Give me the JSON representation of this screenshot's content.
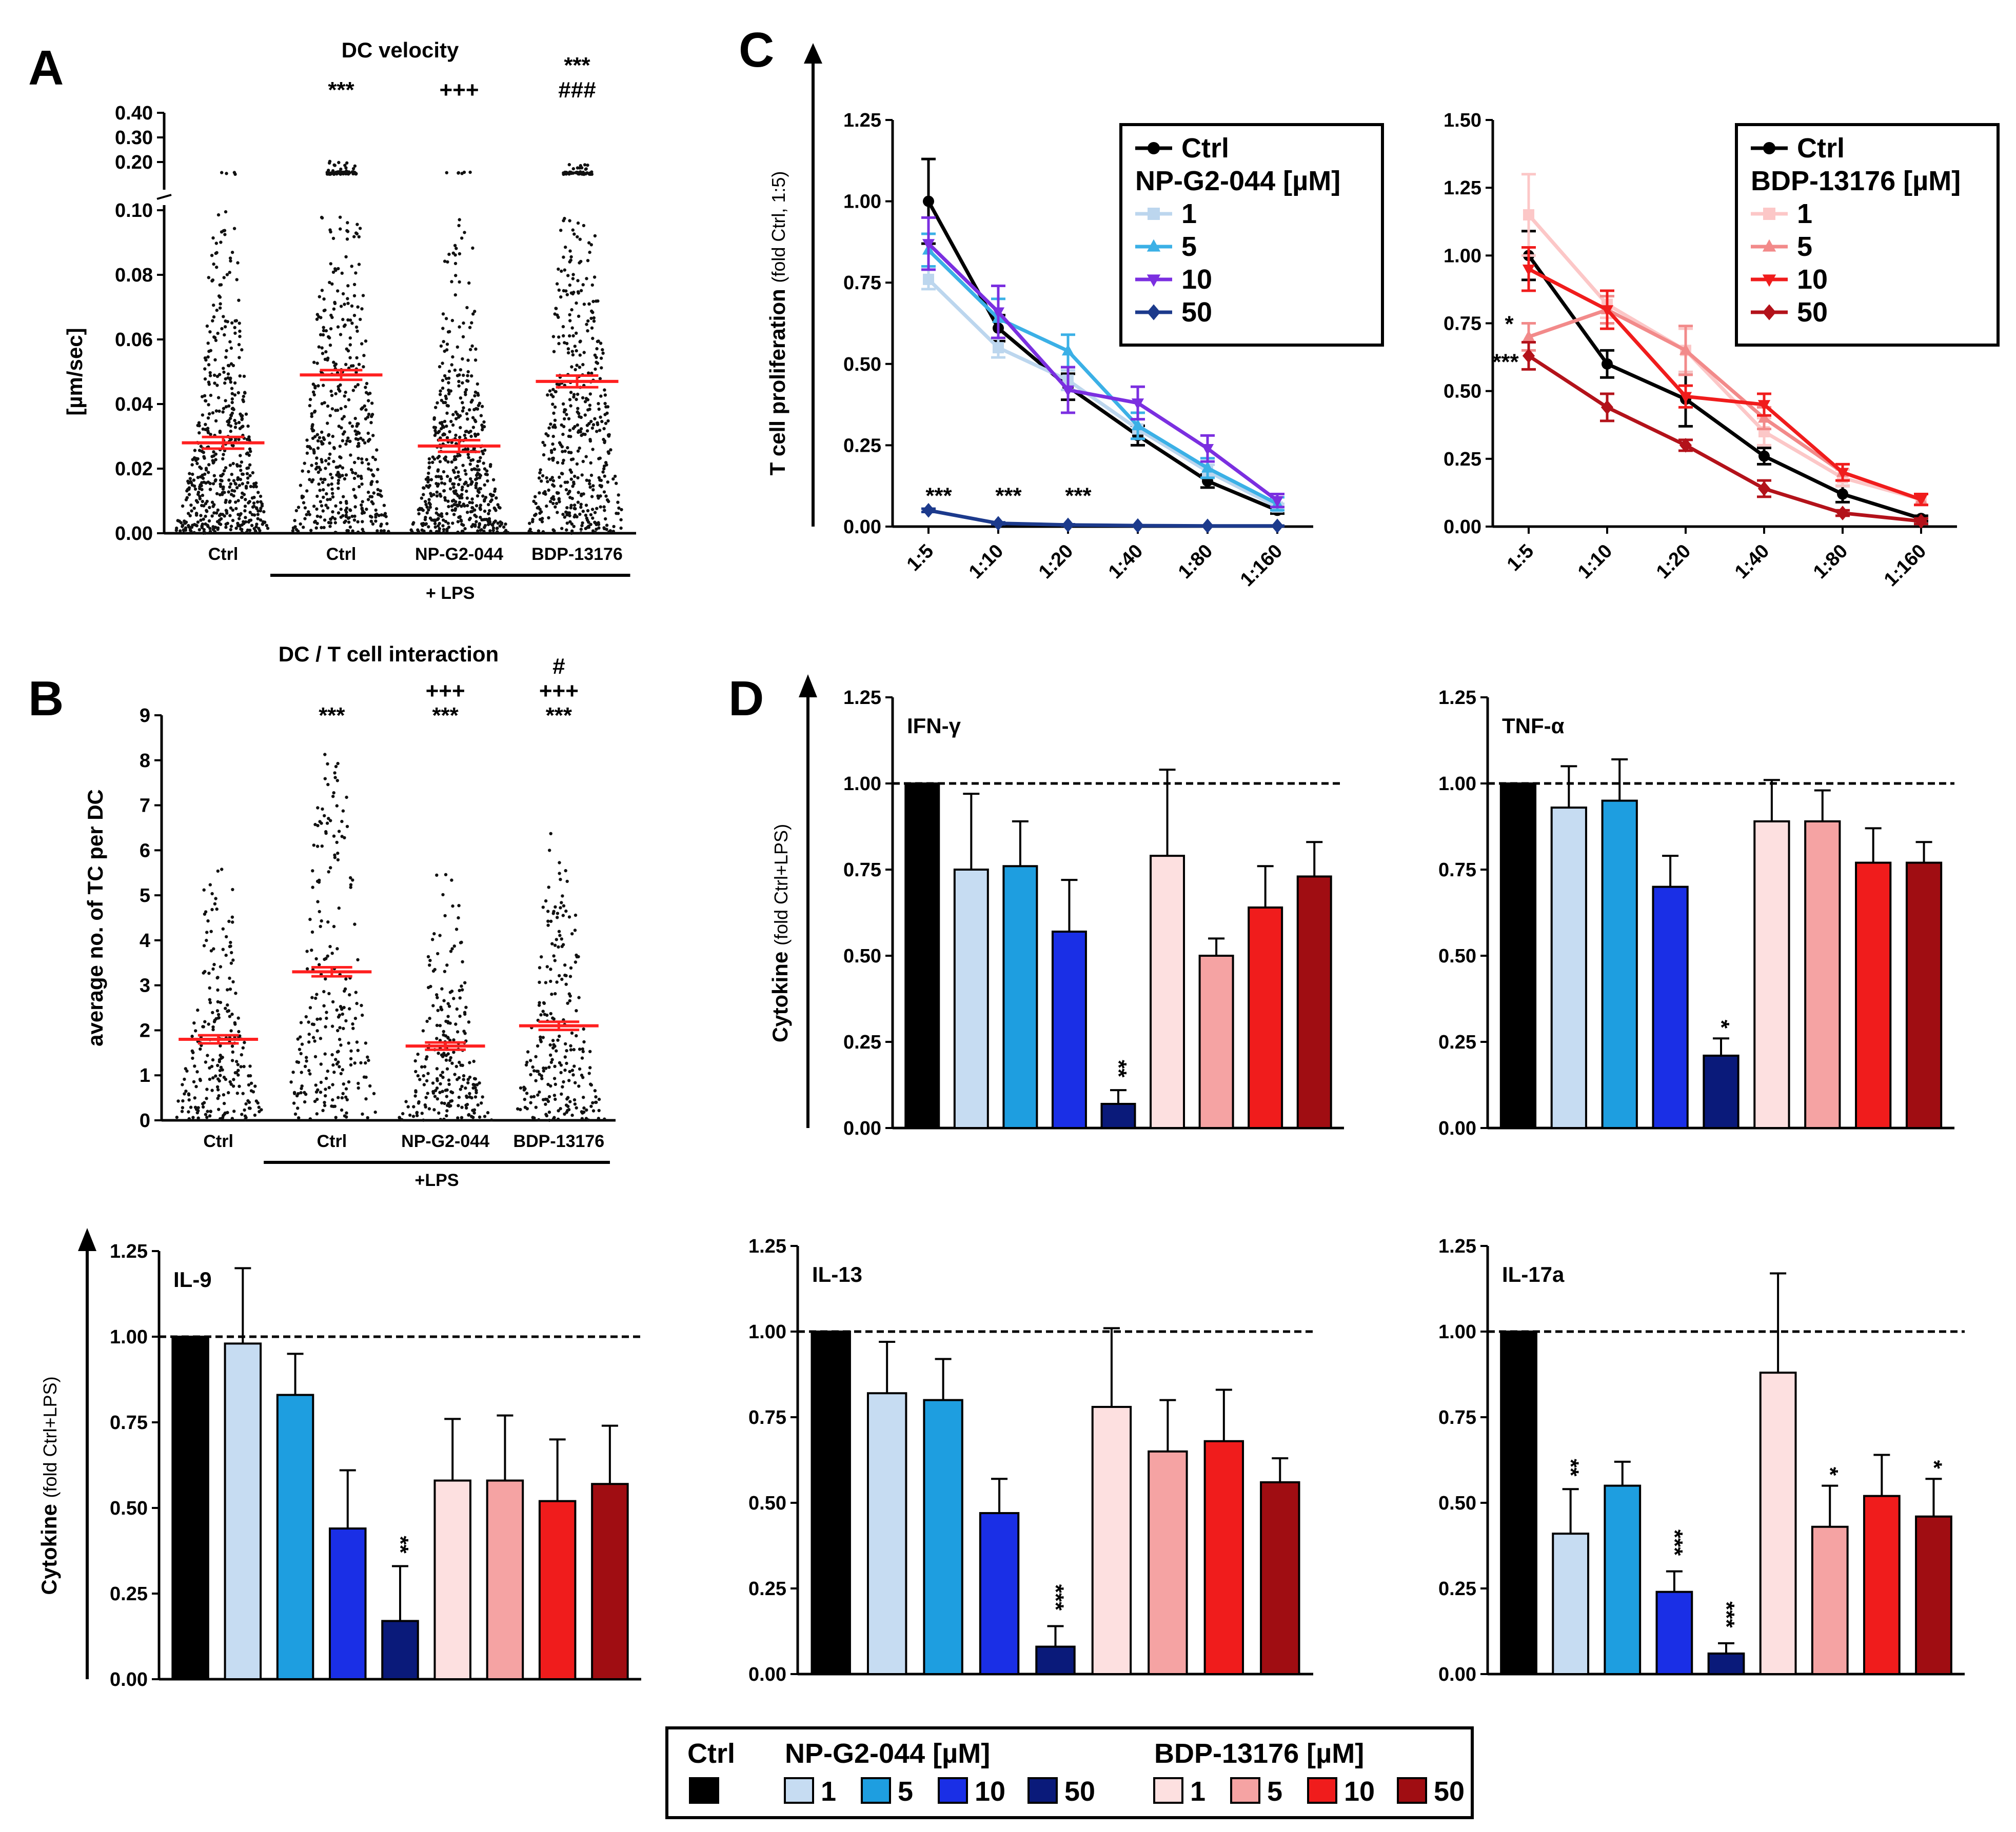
{
  "panel_letters": [
    "A",
    "B",
    "C",
    "D"
  ],
  "colors": {
    "ctrl": "#000000",
    "np_1": "#c6dcf2",
    "np_5": "#1e9ee0",
    "np_10": "#1a2fe6",
    "np_50": "#0a1a7a",
    "bdp_1": "#fde0e0",
    "bdp_5": "#f5a3a3",
    "bdp_10": "#f01c1c",
    "bdp_50": "#a00d12",
    "mean_line": "#ff2020",
    "np_line_1": "#bcd6ee",
    "np_line_5": "#3bb0e6",
    "np_line_10": "#7b2fe0",
    "np_line_50": "#1c3a8c",
    "bdp_line_1": "#fcc7c7",
    "bdp_line_5": "#f28a8a",
    "bdp_line_10": "#f01c1c",
    "bdp_line_50": "#b3121a"
  },
  "icons": {
    "dot": "filled-circle",
    "triangle": "filled-triangle",
    "diamond": "filled-diamond"
  },
  "chart_data": [
    {
      "id": "A",
      "type": "scatter",
      "title": "DC velocity",
      "ylabel": "[µm/sec]",
      "categories": [
        "Ctrl",
        "Ctrl",
        "NP-G2-044",
        "BDP-13176"
      ],
      "group_label": "+ LPS",
      "ylim": [
        0,
        0.4
      ],
      "y_break": [
        0.1,
        0.15
      ],
      "yticks": [
        "0.00",
        "0.02",
        "0.04",
        "0.06",
        "0.08",
        "0.10",
        "0.20",
        "0.30",
        "0.40"
      ],
      "means": [
        0.028,
        0.049,
        0.027,
        0.047
      ],
      "sem": [
        0.0018,
        0.0015,
        0.0018,
        0.0018
      ],
      "max_values": [
        0.17,
        0.22,
        0.19,
        0.19
      ],
      "significance": [
        {
          "rows": []
        },
        {
          "rows": [
            "***"
          ]
        },
        {
          "rows": [
            "+++"
          ]
        },
        {
          "rows": [
            "***",
            "###"
          ]
        }
      ]
    },
    {
      "id": "B",
      "type": "scatter",
      "title": "DC / T cell interaction",
      "ylabel": "average no. of TC per DC",
      "categories": [
        "Ctrl",
        "Ctrl",
        "NP-G2-044",
        "BDP-13176"
      ],
      "group_label": "+LPS",
      "ylim": [
        0,
        9
      ],
      "yticks": [
        "0",
        "1",
        "2",
        "3",
        "4",
        "5",
        "6",
        "7",
        "8",
        "9"
      ],
      "means": [
        1.8,
        3.3,
        1.65,
        2.1
      ],
      "sem": [
        0.09,
        0.1,
        0.08,
        0.09
      ],
      "max_values": [
        5.7,
        8.3,
        5.7,
        6.5
      ],
      "significance": [
        {
          "rows": []
        },
        {
          "rows": [
            "***"
          ]
        },
        {
          "rows": [
            "+++",
            "***"
          ]
        },
        {
          "rows": [
            "#",
            "+++",
            "***"
          ]
        }
      ]
    },
    {
      "id": "C1",
      "type": "line",
      "ylabel": "T cell proliferation",
      "ylabel_suffix": "(fold Ctrl, 1:5)",
      "x": [
        "1:5",
        "1:10",
        "1:20",
        "1:40",
        "1:80",
        "1:160"
      ],
      "ylim": [
        0,
        1.25
      ],
      "yticks": [
        "0.00",
        "0.25",
        "0.50",
        "0.75",
        "1.00",
        "1.25"
      ],
      "legend_title": "NP-G2-044 [µM]",
      "legend_ctrl": "Ctrl",
      "series": [
        {
          "name": "Ctrl",
          "marker": "dot",
          "color": "#000000",
          "values": [
            1.0,
            0.61,
            0.43,
            0.28,
            0.14,
            0.05
          ],
          "err": [
            0.13,
            0.04,
            0.04,
            0.03,
            0.02,
            0.01
          ]
        },
        {
          "name": "1",
          "marker": "square",
          "color": "#bcd6ee",
          "values": [
            0.76,
            0.55,
            0.45,
            0.3,
            0.17,
            0.06
          ],
          "err": [
            0.03,
            0.03,
            0.03,
            0.03,
            0.02,
            0.01
          ]
        },
        {
          "name": "5",
          "marker": "triangle",
          "color": "#3bb0e6",
          "values": [
            0.85,
            0.64,
            0.54,
            0.31,
            0.18,
            0.07
          ],
          "err": [
            0.05,
            0.06,
            0.05,
            0.04,
            0.03,
            0.02
          ]
        },
        {
          "name": "10",
          "marker": "triangle-down",
          "color": "#7b2fe0",
          "values": [
            0.87,
            0.66,
            0.42,
            0.38,
            0.24,
            0.08
          ],
          "err": [
            0.08,
            0.08,
            0.07,
            0.05,
            0.04,
            0.02
          ]
        },
        {
          "name": "50",
          "marker": "diamond",
          "color": "#1c3a8c",
          "values": [
            0.05,
            0.01,
            0.005,
            0.003,
            0.002,
            0.002
          ],
          "err": [
            0.005,
            0.003,
            0.002,
            0.001,
            0.001,
            0.001
          ]
        }
      ],
      "annotations": [
        {
          "x": "1:5",
          "text": "***"
        },
        {
          "x": "1:10",
          "text": "***"
        },
        {
          "x": "1:20",
          "text": "***"
        }
      ]
    },
    {
      "id": "C2",
      "type": "line",
      "x": [
        "1:5",
        "1:10",
        "1:20",
        "1:40",
        "1:80",
        "1:160"
      ],
      "ylim": [
        0,
        1.5
      ],
      "yticks": [
        "0.00",
        "0.25",
        "0.50",
        "0.75",
        "1.00",
        "1.25",
        "1.50"
      ],
      "legend_title": "BDP-13176 [µM]",
      "legend_ctrl": "Ctrl",
      "series": [
        {
          "name": "Ctrl",
          "marker": "dot",
          "color": "#000000",
          "values": [
            1.0,
            0.6,
            0.47,
            0.26,
            0.12,
            0.03
          ],
          "err": [
            0.09,
            0.05,
            0.1,
            0.03,
            0.03,
            0.01
          ]
        },
        {
          "name": "1",
          "marker": "square",
          "color": "#fcc7c7",
          "values": [
            1.15,
            0.82,
            0.65,
            0.35,
            0.18,
            0.1
          ],
          "err": [
            0.15,
            0.05,
            0.08,
            0.05,
            0.03,
            0.02
          ]
        },
        {
          "name": "5",
          "marker": "triangle",
          "color": "#f28a8a",
          "values": [
            0.7,
            0.8,
            0.65,
            0.4,
            0.2,
            0.1
          ],
          "err": [
            0.05,
            0.05,
            0.09,
            0.04,
            0.03,
            0.02
          ]
        },
        {
          "name": "10",
          "marker": "triangle-down",
          "color": "#f01c1c",
          "values": [
            0.95,
            0.8,
            0.48,
            0.45,
            0.2,
            0.1
          ],
          "err": [
            0.08,
            0.07,
            0.04,
            0.04,
            0.03,
            0.02
          ]
        },
        {
          "name": "50",
          "marker": "diamond",
          "color": "#b3121a",
          "values": [
            0.63,
            0.44,
            0.3,
            0.14,
            0.05,
            0.02
          ],
          "err": [
            0.05,
            0.05,
            0.02,
            0.03,
            0.01,
            0.01
          ]
        }
      ],
      "annotations": [
        {
          "x": "1:5",
          "text": "*",
          "color": "#f28a8a"
        },
        {
          "x": "1:5",
          "text": "***",
          "color": "#b3121a"
        }
      ]
    },
    {
      "id": "D-IFN",
      "type": "bar",
      "label": "IFN-γ",
      "ylabel": "Cytokine",
      "ylabel_suffix": "(fold Ctrl+LPS)",
      "ylim": [
        0,
        1.25
      ],
      "yticks": [
        "0.00",
        "0.25",
        "0.50",
        "0.75",
        "1.00",
        "1.25"
      ],
      "reference_line": 1.0,
      "categories": [
        "Ctrl",
        "NP 1",
        "NP 5",
        "NP 10",
        "NP 50",
        "BDP 1",
        "BDP 5",
        "BDP 10",
        "BDP 50"
      ],
      "values": [
        1.0,
        0.75,
        0.76,
        0.57,
        0.07,
        0.79,
        0.5,
        0.64,
        0.73
      ],
      "err": [
        0,
        0.22,
        0.13,
        0.15,
        0.04,
        0.25,
        0.05,
        0.12,
        0.1
      ],
      "significance": [
        "",
        "",
        "",
        "",
        "**",
        "",
        "",
        "",
        ""
      ]
    },
    {
      "id": "D-TNF",
      "type": "bar",
      "label": "TNF-α",
      "ylim": [
        0,
        1.25
      ],
      "yticks": [
        "0.00",
        "0.25",
        "0.50",
        "0.75",
        "1.00",
        "1.25"
      ],
      "reference_line": 1.0,
      "categories": [
        "Ctrl",
        "NP 1",
        "NP 5",
        "NP 10",
        "NP 50",
        "BDP 1",
        "BDP 5",
        "BDP 10",
        "BDP 50"
      ],
      "values": [
        1.0,
        0.93,
        0.95,
        0.7,
        0.21,
        0.89,
        0.89,
        0.77,
        0.77
      ],
      "err": [
        0,
        0.12,
        0.12,
        0.09,
        0.05,
        0.12,
        0.09,
        0.1,
        0.06
      ],
      "significance": [
        "",
        "",
        "",
        "",
        "*",
        "",
        "",
        "",
        ""
      ]
    },
    {
      "id": "D-IL9",
      "type": "bar",
      "label": "IL-9",
      "ylabel": "Cytokine",
      "ylabel_suffix": "(fold Ctrl+LPS)",
      "ylim": [
        0,
        1.25
      ],
      "yticks": [
        "0.00",
        "0.25",
        "0.50",
        "0.75",
        "1.00",
        "1.25"
      ],
      "reference_line": 1.0,
      "categories": [
        "Ctrl",
        "NP 1",
        "NP 5",
        "NP 10",
        "NP 50",
        "BDP 1",
        "BDP 5",
        "BDP 10",
        "BDP 50"
      ],
      "values": [
        1.0,
        0.98,
        0.83,
        0.44,
        0.17,
        0.58,
        0.58,
        0.52,
        0.57
      ],
      "err": [
        0,
        0.22,
        0.12,
        0.17,
        0.16,
        0.18,
        0.19,
        0.18,
        0.17
      ],
      "significance": [
        "",
        "",
        "",
        "",
        "**",
        "",
        "",
        "",
        ""
      ]
    },
    {
      "id": "D-IL13",
      "type": "bar",
      "label": "IL-13",
      "ylim": [
        0,
        1.25
      ],
      "yticks": [
        "0.00",
        "0.25",
        "0.50",
        "0.75",
        "1.00",
        "1.25"
      ],
      "reference_line": 1.0,
      "categories": [
        "Ctrl",
        "NP 1",
        "NP 5",
        "NP 10",
        "NP 50",
        "BDP 1",
        "BDP 5",
        "BDP 10",
        "BDP 50"
      ],
      "values": [
        1.0,
        0.82,
        0.8,
        0.47,
        0.08,
        0.78,
        0.65,
        0.68,
        0.56
      ],
      "err": [
        0,
        0.15,
        0.12,
        0.1,
        0.06,
        0.23,
        0.15,
        0.15,
        0.07
      ],
      "significance": [
        "",
        "",
        "",
        "",
        "***",
        "",
        "",
        "",
        ""
      ]
    },
    {
      "id": "D-IL17",
      "type": "bar",
      "label": "IL-17a",
      "ylim": [
        0,
        1.25
      ],
      "yticks": [
        "0.00",
        "0.25",
        "0.50",
        "0.75",
        "1.00",
        "1.25"
      ],
      "reference_line": 1.0,
      "categories": [
        "Ctrl",
        "NP 1",
        "NP 5",
        "NP 10",
        "NP 50",
        "BDP 1",
        "BDP 5",
        "BDP 10",
        "BDP 50"
      ],
      "values": [
        1.0,
        0.41,
        0.55,
        0.24,
        0.06,
        0.88,
        0.43,
        0.52,
        0.46
      ],
      "err": [
        0,
        0.13,
        0.07,
        0.06,
        0.03,
        0.29,
        0.12,
        0.12,
        0.11
      ],
      "significance": [
        "",
        "**",
        "",
        "***",
        "***",
        "",
        "*",
        "",
        "*"
      ]
    }
  ],
  "legend": {
    "ctrl_label": "Ctrl",
    "np_title": "NP-G2-044 [µM]",
    "bdp_title": "BDP-13176 [µM]",
    "doses": [
      "1",
      "5",
      "10",
      "50"
    ]
  }
}
